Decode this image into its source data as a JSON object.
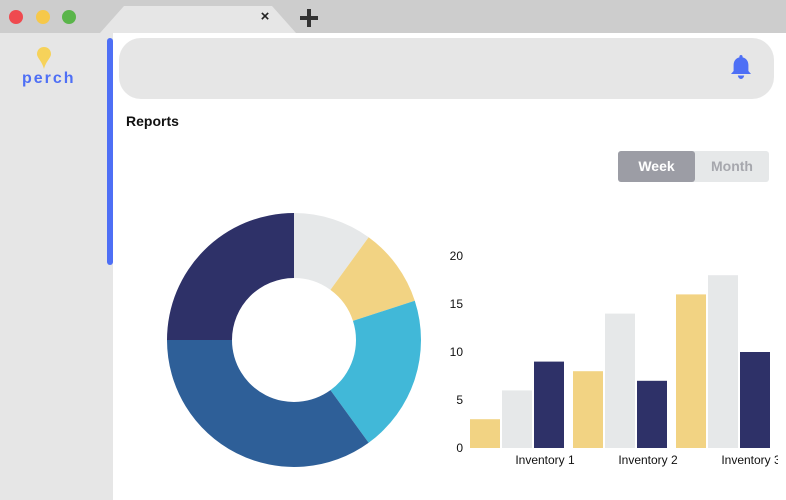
{
  "browser": {
    "tab_close_glyph": "×",
    "new_tab_icon": "plus-icon"
  },
  "sidebar": {
    "logo_text": "perch",
    "logo_icon": "pin-icon"
  },
  "header": {
    "notification_icon": "bell-icon"
  },
  "main": {
    "title": "Reports",
    "period_toggle": {
      "options": [
        "Week",
        "Month"
      ],
      "selected": "Week"
    }
  },
  "colors": {
    "accent": "#4e6ff5",
    "yellow": "#f2d383",
    "light_gray": "#e6e8e9",
    "navy": "#2e3168",
    "cyan": "#41b8d8",
    "blue": "#2e5f98"
  },
  "chart_data": [
    {
      "type": "pie",
      "variant": "donut",
      "slices": [
        {
          "value": 10,
          "color": "#e6e8e9"
        },
        {
          "value": 10,
          "color": "#f2d383"
        },
        {
          "value": 20,
          "color": "#41b8d8"
        },
        {
          "value": 35,
          "color": "#2e5f98"
        },
        {
          "value": 25,
          "color": "#2e3168"
        }
      ]
    },
    {
      "type": "bar",
      "categories": [
        "Inventory 1",
        "Inventory 2",
        "Inventory 3"
      ],
      "series": [
        {
          "values": [
            3,
            8,
            16
          ],
          "color": "#f2d383"
        },
        {
          "values": [
            6,
            14,
            18
          ],
          "color": "#e6e8e9"
        },
        {
          "values": [
            9,
            7,
            10
          ],
          "color": "#2e3168"
        }
      ],
      "ylim": [
        0,
        20
      ],
      "yticks": [
        0,
        5,
        10,
        15,
        20
      ],
      "grid": false,
      "legend": "none"
    }
  ]
}
